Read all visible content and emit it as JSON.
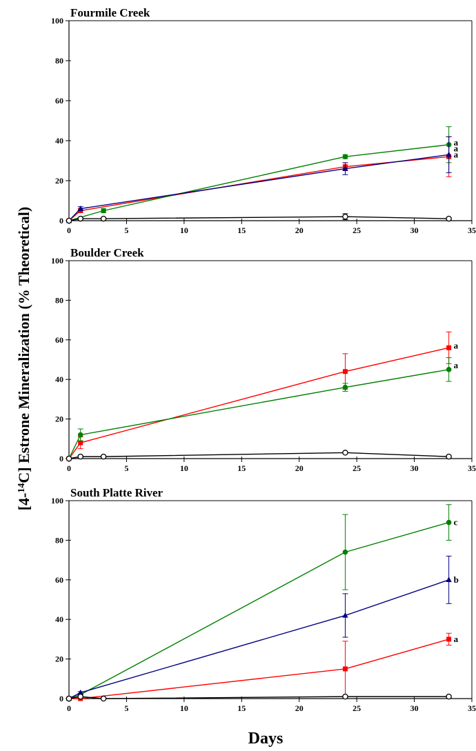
{
  "figure": {
    "ylabel_prefix": "[4-",
    "ylabel_sup": "14",
    "ylabel_suffix": "C] Estrone Mineralization (% Theoretical)",
    "xlabel": "Days"
  },
  "chart_data": [
    {
      "type": "line",
      "title": "Fourmile Creek",
      "xlim": [
        0,
        35
      ],
      "ylim": [
        0,
        100
      ],
      "xticks": [
        0,
        5,
        10,
        15,
        20,
        25,
        30,
        35
      ],
      "yticks": [
        0,
        20,
        40,
        60,
        80,
        100
      ],
      "series": [
        {
          "color": "#ff0000",
          "marker": "square",
          "x": [
            0,
            1,
            24,
            33
          ],
          "y": [
            0,
            5,
            27,
            32
          ],
          "err": [
            0,
            1,
            2,
            10
          ]
        },
        {
          "color": "#008000",
          "marker": "circle",
          "x": [
            0,
            3,
            24,
            33
          ],
          "y": [
            0,
            5,
            32,
            38
          ],
          "err": [
            0,
            1,
            1,
            9
          ]
        },
        {
          "color": "#000080",
          "marker": "triangle",
          "x": [
            0,
            1,
            24,
            33
          ],
          "y": [
            0,
            6,
            26,
            33
          ],
          "err": [
            0,
            1,
            3,
            9
          ]
        },
        {
          "color": "#000000",
          "marker": "open-circle",
          "x": [
            0,
            1,
            3,
            24,
            33
          ],
          "y": [
            0,
            1,
            1,
            2,
            1
          ],
          "err": [
            0,
            0.5,
            0.5,
            1.5,
            0.5
          ]
        }
      ],
      "annotations": [
        {
          "x": 33,
          "y": 39,
          "text": "a"
        },
        {
          "x": 33,
          "y": 36,
          "text": "a"
        },
        {
          "x": 33,
          "y": 33,
          "text": "a"
        }
      ]
    },
    {
      "type": "line",
      "title": "Boulder Creek",
      "xlim": [
        0,
        35
      ],
      "ylim": [
        0,
        100
      ],
      "xticks": [
        0,
        5,
        10,
        15,
        20,
        25,
        30,
        35
      ],
      "yticks": [
        0,
        20,
        40,
        60,
        80,
        100
      ],
      "series": [
        {
          "color": "#ff0000",
          "marker": "square",
          "x": [
            0,
            1,
            24,
            33
          ],
          "y": [
            0,
            8,
            44,
            56
          ],
          "err": [
            0,
            3,
            9,
            8
          ]
        },
        {
          "color": "#008000",
          "marker": "circle",
          "x": [
            0,
            1,
            24,
            33
          ],
          "y": [
            0,
            12,
            36,
            45
          ],
          "err": [
            0,
            3,
            2,
            6
          ]
        },
        {
          "color": "#000000",
          "marker": "open-circle",
          "x": [
            0,
            1,
            3,
            24,
            33
          ],
          "y": [
            0,
            1,
            1,
            3,
            1
          ],
          "err": [
            0,
            0.5,
            0.5,
            0.5,
            0.5
          ]
        }
      ],
      "annotations": [
        {
          "x": 33,
          "y": 57,
          "text": "a"
        },
        {
          "x": 33,
          "y": 47,
          "text": "a"
        }
      ]
    },
    {
      "type": "line",
      "title": "South Platte River",
      "xlim": [
        0,
        35
      ],
      "ylim": [
        0,
        100
      ],
      "xticks": [
        0,
        5,
        10,
        15,
        20,
        25,
        30,
        35
      ],
      "yticks": [
        0,
        20,
        40,
        60,
        80,
        100
      ],
      "series": [
        {
          "color": "#008000",
          "marker": "circle",
          "x": [
            0,
            1,
            24,
            33
          ],
          "y": [
            0,
            2,
            74,
            89
          ],
          "err": [
            0,
            0.5,
            19,
            9
          ]
        },
        {
          "color": "#000080",
          "marker": "triangle",
          "x": [
            0,
            1,
            24,
            33
          ],
          "y": [
            0,
            3,
            42,
            60
          ],
          "err": [
            0,
            0.5,
            11,
            12
          ]
        },
        {
          "color": "#ff0000",
          "marker": "square",
          "x": [
            0,
            1,
            24,
            33
          ],
          "y": [
            0,
            0,
            15,
            30
          ],
          "err": [
            0,
            0.5,
            14,
            3
          ]
        },
        {
          "color": "#000000",
          "marker": "open-circle",
          "x": [
            0,
            1,
            3,
            24,
            33
          ],
          "y": [
            0,
            1,
            0,
            1,
            1
          ],
          "err": [
            0,
            0.5,
            0.5,
            0.5,
            0.5
          ]
        }
      ],
      "annotations": [
        {
          "x": 33,
          "y": 89,
          "text": "c"
        },
        {
          "x": 33,
          "y": 60,
          "text": "b"
        },
        {
          "x": 33,
          "y": 30,
          "text": "a"
        }
      ]
    }
  ]
}
